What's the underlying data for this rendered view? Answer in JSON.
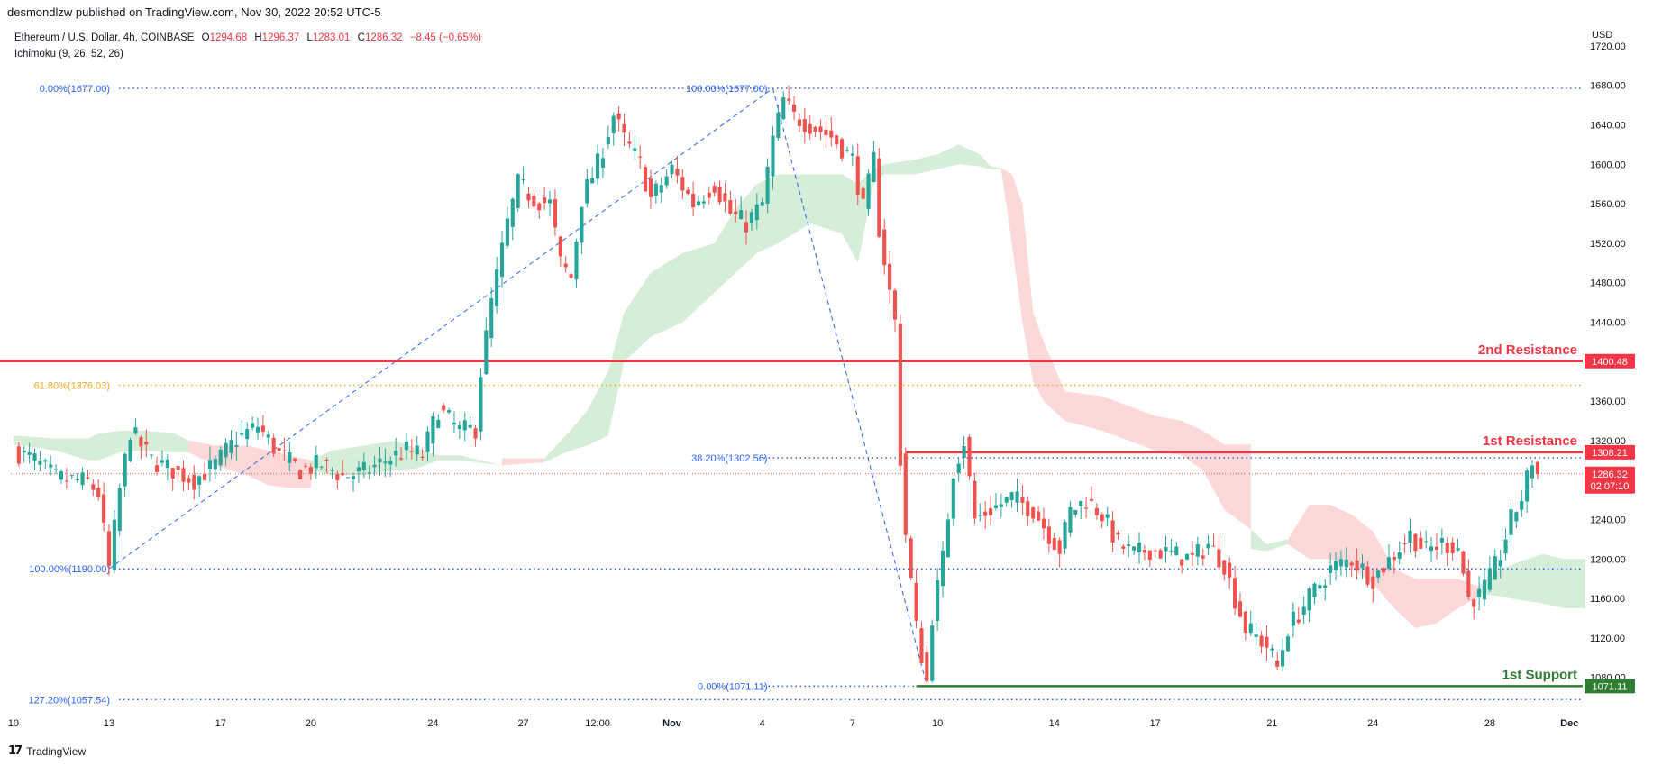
{
  "header": {
    "published_by": "desmondlzw published on TradingView.com, Nov 30, 2022 20:52 UTC-5"
  },
  "legend": {
    "symbol": "Ethereum / U.S. Dollar, 4h, COINBASE",
    "ohlc": [
      {
        "key": "O",
        "value": "1294.68"
      },
      {
        "key": "H",
        "value": "1296.37"
      },
      {
        "key": "L",
        "value": "1283.01"
      },
      {
        "key": "C",
        "value": "1286.32"
      }
    ],
    "change": "−8.45 (−0.65%)",
    "indicator": "Ichimoku (9, 26, 52, 26)"
  },
  "currency": "USD",
  "footer": {
    "brand": "TradingView",
    "logo": "17"
  },
  "colors": {
    "up": "#26a69a",
    "down": "#ef5350",
    "resistance": "#f23645",
    "support": "#2e7d32",
    "fib": "#2962ff",
    "fib618": "#f5a623",
    "cloud_green": "#a5d6a7",
    "cloud_red": "#f8a8a8"
  },
  "chart_data": {
    "type": "candlestick",
    "symbol": "ETHUSD",
    "timeframe": "4h",
    "y_axis": {
      "ylim": [
        1045,
        1730
      ],
      "ticks": [
        1080,
        1120,
        1160,
        1200,
        1240,
        1280,
        1320,
        1360,
        1400,
        1440,
        1480,
        1520,
        1560,
        1600,
        1640,
        1680,
        1720
      ],
      "tick_labels": [
        "1080.00",
        "1120.00",
        "1160.00",
        "1200.00",
        "1240.00",
        "1280.00",
        "1320.00",
        "1360.00",
        "1400.00",
        "1440.00",
        "1480.00",
        "1520.00",
        "1560.00",
        "1600.00",
        "1640.00",
        "1680.00",
        "1720.00"
      ]
    },
    "x_axis": {
      "labels": [
        "10",
        "13",
        "17",
        "20",
        "24",
        "27",
        "12:00",
        "Nov",
        "4",
        "7",
        "10",
        "14",
        "17",
        "21",
        "24",
        "28",
        "Dec"
      ],
      "label_bar_index": [
        0,
        18,
        39,
        56,
        79,
        96,
        110,
        124,
        141,
        158,
        174,
        196,
        215,
        237,
        256,
        278,
        293
      ],
      "bold_labels": [
        "Nov",
        "Dec"
      ]
    },
    "bars_total": 296,
    "last_bar_index": 283,
    "price_anchors": [
      [
        0,
        1310
      ],
      [
        4,
        1300
      ],
      [
        8,
        1282
      ],
      [
        14,
        1278
      ],
      [
        16,
        1266
      ],
      [
        18,
        1190
      ],
      [
        20,
        1270
      ],
      [
        22,
        1330
      ],
      [
        26,
        1300
      ],
      [
        30,
        1290
      ],
      [
        34,
        1280
      ],
      [
        38,
        1296
      ],
      [
        42,
        1322
      ],
      [
        46,
        1335
      ],
      [
        50,
        1306
      ],
      [
        54,
        1290
      ],
      [
        58,
        1296
      ],
      [
        62,
        1284
      ],
      [
        66,
        1288
      ],
      [
        70,
        1300
      ],
      [
        74,
        1310
      ],
      [
        77,
        1305
      ],
      [
        80,
        1352
      ],
      [
        84,
        1330
      ],
      [
        87,
        1332
      ],
      [
        88,
        1390
      ],
      [
        90,
        1460
      ],
      [
        93,
        1540
      ],
      [
        95,
        1580
      ],
      [
        98,
        1565
      ],
      [
        101,
        1560
      ],
      [
        103,
        1500
      ],
      [
        105,
        1485
      ],
      [
        107,
        1565
      ],
      [
        110,
        1600
      ],
      [
        113,
        1650
      ],
      [
        115,
        1625
      ],
      [
        118,
        1600
      ],
      [
        120,
        1565
      ],
      [
        124,
        1595
      ],
      [
        128,
        1560
      ],
      [
        132,
        1580
      ],
      [
        135,
        1550
      ],
      [
        138,
        1540
      ],
      [
        141,
        1560
      ],
      [
        143,
        1625
      ],
      [
        145,
        1665
      ],
      [
        147,
        1648
      ],
      [
        150,
        1640
      ],
      [
        154,
        1628
      ],
      [
        158,
        1605
      ],
      [
        160,
        1555
      ],
      [
        162,
        1605
      ],
      [
        163,
        1535
      ],
      [
        165,
        1470
      ],
      [
        166,
        1440
      ],
      [
        167,
        1302
      ],
      [
        168,
        1225
      ],
      [
        170,
        1130
      ],
      [
        172,
        1075
      ],
      [
        173,
        1142
      ],
      [
        175,
        1200
      ],
      [
        177,
        1290
      ],
      [
        179,
        1320
      ],
      [
        181,
        1240
      ],
      [
        184,
        1250
      ],
      [
        188,
        1262
      ],
      [
        192,
        1250
      ],
      [
        195,
        1225
      ],
      [
        197,
        1210
      ],
      [
        199,
        1248
      ],
      [
        202,
        1260
      ],
      [
        205,
        1245
      ],
      [
        208,
        1215
      ],
      [
        211,
        1205
      ],
      [
        214,
        1210
      ],
      [
        218,
        1205
      ],
      [
        222,
        1200
      ],
      [
        225,
        1215
      ],
      [
        228,
        1195
      ],
      [
        230,
        1160
      ],
      [
        232,
        1130
      ],
      [
        236,
        1112
      ],
      [
        238,
        1090
      ],
      [
        240,
        1130
      ],
      [
        244,
        1160
      ],
      [
        248,
        1190
      ],
      [
        252,
        1200
      ],
      [
        256,
        1180
      ],
      [
        260,
        1205
      ],
      [
        263,
        1225
      ],
      [
        266,
        1208
      ],
      [
        269,
        1216
      ],
      [
        272,
        1212
      ],
      [
        274,
        1160
      ],
      [
        276,
        1162
      ],
      [
        278,
        1180
      ],
      [
        280,
        1205
      ],
      [
        282,
        1240
      ],
      [
        284,
        1262
      ],
      [
        286,
        1300
      ],
      [
        287,
        1286
      ]
    ],
    "series": [
      {
        "name": "2nd Resistance",
        "value": 1400.48,
        "badge": "1400.48",
        "label": "2nd Resistance"
      },
      {
        "name": "1st Resistance",
        "value": 1308.21,
        "badge": "1308.21",
        "label": "1st Resistance",
        "from_bar": 168
      },
      {
        "name": "1st Support",
        "value": 1071.11,
        "badge": "1071.11",
        "label": "1st Support",
        "from_bar": 170
      }
    ],
    "current_price": {
      "value": 1286.32,
      "badge": "1286.32",
      "countdown": "02:07:10"
    },
    "fib_leg1": {
      "from_bar": 18,
      "to_bar": 143,
      "levels": [
        {
          "label": "0.00%(1677.00)",
          "value": 1677.0
        },
        {
          "label": "61.80%(1376.03)",
          "value": 1376.03,
          "color": "orange"
        },
        {
          "label": "100.00%(1190.00)",
          "value": 1190.0
        },
        {
          "label": "127.20%(1057.54)",
          "value": 1057.54
        }
      ],
      "trend": {
        "from": [
          18,
          1190
        ],
        "to": [
          143,
          1677
        ]
      }
    },
    "fib_leg2": {
      "from_bar": 143,
      "to_bar": 172,
      "levels": [
        {
          "label": "100.00%(1677.00)",
          "value": 1677.0
        },
        {
          "label": "38.20%(1302.56)",
          "value": 1302.56
        },
        {
          "label": "0.00%(1071.11)",
          "value": 1071.11
        }
      ],
      "trend": {
        "from": [
          143,
          1677
        ],
        "to": [
          172,
          1071
        ]
      }
    },
    "ichimoku_cloud": [
      {
        "color": "green",
        "points": [
          [
            0,
            1316,
            1325
          ],
          [
            8,
            1310,
            1322
          ],
          [
            14,
            1300,
            1322
          ],
          [
            16,
            1300,
            1327
          ],
          [
            20,
            1308,
            1330
          ],
          [
            24,
            1310,
            1330
          ],
          [
            30,
            1308,
            1328
          ],
          [
            33,
            1308,
            1320
          ]
        ]
      },
      {
        "color": "red",
        "points": [
          [
            33,
            1308,
            1320
          ],
          [
            38,
            1295,
            1315
          ],
          [
            44,
            1285,
            1315
          ],
          [
            48,
            1275,
            1310
          ],
          [
            52,
            1272,
            1305
          ],
          [
            56,
            1272,
            1300
          ]
        ]
      },
      {
        "color": "green",
        "points": [
          [
            56,
            1290,
            1300
          ],
          [
            60,
            1285,
            1310
          ],
          [
            66,
            1285,
            1315
          ],
          [
            72,
            1290,
            1320
          ],
          [
            76,
            1292,
            1312
          ],
          [
            80,
            1300,
            1305
          ],
          [
            84,
            1300,
            1305
          ],
          [
            92,
            1295,
            1295
          ]
        ]
      },
      {
        "color": "red",
        "points": [
          [
            92,
            1295,
            1302
          ],
          [
            100,
            1298,
            1302
          ]
        ]
      },
      {
        "color": "green",
        "points": [
          [
            100,
            1298,
            1302
          ],
          [
            104,
            1308,
            1325
          ],
          [
            108,
            1315,
            1350
          ],
          [
            112,
            1325,
            1390
          ],
          [
            115,
            1400,
            1450
          ],
          [
            120,
            1425,
            1490
          ],
          [
            126,
            1440,
            1510
          ],
          [
            132,
            1470,
            1520
          ],
          [
            136,
            1490,
            1555
          ],
          [
            140,
            1510,
            1580
          ],
          [
            144,
            1520,
            1590
          ],
          [
            150,
            1540,
            1590
          ],
          [
            156,
            1530,
            1590
          ],
          [
            159,
            1500,
            1580
          ],
          [
            162,
            1580,
            1595
          ],
          [
            164,
            1590,
            1600
          ],
          [
            170,
            1590,
            1605
          ],
          [
            174,
            1595,
            1610
          ],
          [
            178,
            1600,
            1620
          ],
          [
            182,
            1598,
            1610
          ],
          [
            184,
            1595,
            1598
          ],
          [
            186,
            1595,
            1596
          ]
        ]
      },
      {
        "color": "red",
        "points": [
          [
            186,
            1595,
            1596
          ],
          [
            188,
            1520,
            1590
          ],
          [
            190,
            1440,
            1560
          ],
          [
            192,
            1380,
            1450
          ],
          [
            194,
            1360,
            1420
          ],
          [
            198,
            1340,
            1370
          ],
          [
            205,
            1330,
            1365
          ],
          [
            215,
            1310,
            1345
          ],
          [
            220,
            1305,
            1340
          ],
          [
            224,
            1290,
            1330
          ],
          [
            228,
            1250,
            1316
          ],
          [
            233,
            1230,
            1316
          ]
        ]
      },
      {
        "color": "green",
        "points": [
          [
            233,
            1210,
            1230
          ],
          [
            236,
            1208,
            1215
          ],
          [
            240,
            1215,
            1220
          ]
        ]
      },
      {
        "color": "red",
        "points": [
          [
            240,
            1215,
            1220
          ],
          [
            244,
            1200,
            1255
          ],
          [
            248,
            1200,
            1255
          ],
          [
            252,
            1190,
            1245
          ],
          [
            256,
            1175,
            1228
          ],
          [
            260,
            1150,
            1190
          ],
          [
            264,
            1130,
            1180
          ],
          [
            268,
            1135,
            1180
          ],
          [
            272,
            1150,
            1180
          ],
          [
            276,
            1162,
            1172
          ]
        ]
      },
      {
        "color": "green",
        "points": [
          [
            276,
            1165,
            1172
          ],
          [
            280,
            1162,
            1190
          ],
          [
            284,
            1158,
            1198
          ],
          [
            288,
            1155,
            1205
          ],
          [
            292,
            1150,
            1200
          ],
          [
            296,
            1150,
            1200
          ]
        ]
      }
    ]
  }
}
